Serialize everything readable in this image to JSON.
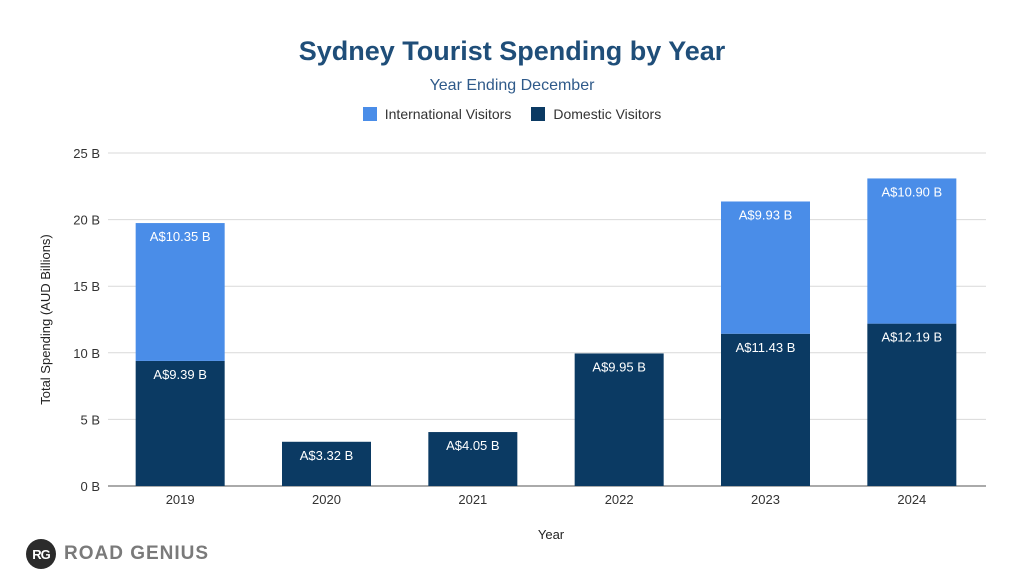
{
  "chart_data": {
    "type": "bar",
    "stacked": true,
    "title": "Sydney Tourist Spending by Year",
    "subtitle": "Year Ending December",
    "xlabel": "Year",
    "ylabel": "Total Spending (AUD Billions)",
    "ylim": [
      0,
      25
    ],
    "yticks": [
      0,
      5,
      10,
      15,
      20,
      25
    ],
    "ytick_labels": [
      "0 B",
      "5 B",
      "10 B",
      "15 B",
      "20 B",
      "25 B"
    ],
    "grid": true,
    "legend_position": "top",
    "categories": [
      "2019",
      "2020",
      "2021",
      "2022",
      "2023",
      "2024"
    ],
    "series": [
      {
        "name": "Domestic Visitors",
        "color": "#0b3a63",
        "values": [
          9.39,
          3.32,
          4.05,
          9.95,
          11.43,
          12.19
        ],
        "labels": [
          "A$9.39 B",
          "A$3.32 B",
          "A$4.05 B",
          "A$9.95 B",
          "A$11.43 B",
          "A$12.19 B"
        ]
      },
      {
        "name": "International Visitors",
        "color": "#4a8de8",
        "values": [
          10.35,
          null,
          null,
          null,
          9.93,
          10.9
        ],
        "labels": [
          "A$10.35 B",
          "",
          "",
          "",
          "A$9.93 B",
          "A$10.90 B"
        ]
      }
    ]
  },
  "legend": {
    "items": [
      {
        "label": "International Visitors",
        "color": "#4a8de8"
      },
      {
        "label": "Domestic Visitors",
        "color": "#0b3a63"
      }
    ]
  },
  "logo": {
    "badge": "RG",
    "text": "ROAD GENIUS"
  }
}
